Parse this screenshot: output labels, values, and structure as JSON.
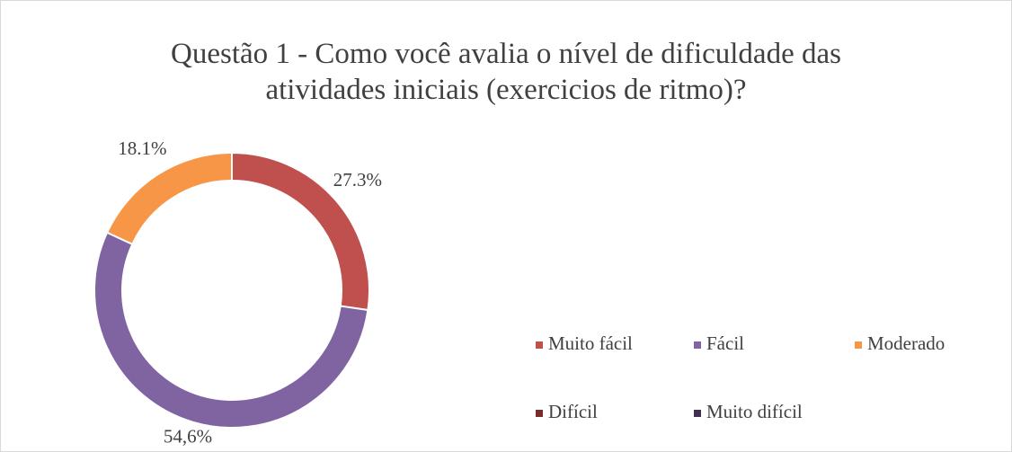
{
  "chart_data": {
    "type": "donut",
    "title": "Questão 1 - Como você avalia o nível de dificuldade das atividades iniciais (exercicios de ritmo)?",
    "categories": [
      "Muito fácil",
      "Fácil",
      "Moderado",
      "Difícil",
      "Muito difícil"
    ],
    "values": [
      27.3,
      54.6,
      18.1,
      0,
      0
    ],
    "value_labels": [
      "27.3%",
      "54,6%",
      "18.1%",
      null,
      null
    ],
    "colors": [
      "#c0504d",
      "#8064a2",
      "#f79646",
      "#772c2a",
      "#3f3151"
    ],
    "legend": "right"
  }
}
